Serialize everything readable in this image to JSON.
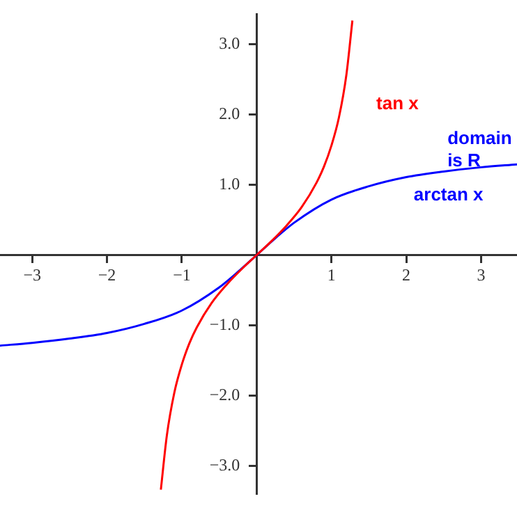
{
  "chart_data": {
    "type": "line",
    "xlim": [
      -3.43,
      3.48
    ],
    "ylim": [
      -3.4,
      3.43
    ],
    "xticks": [
      {
        "value": -3,
        "label": "−3"
      },
      {
        "value": -2,
        "label": "−2"
      },
      {
        "value": -1,
        "label": "−1"
      },
      {
        "value": 1,
        "label": "1"
      },
      {
        "value": 2,
        "label": "2"
      },
      {
        "value": 3,
        "label": "3"
      }
    ],
    "yticks": [
      {
        "value": -3,
        "label": "−3.0"
      },
      {
        "value": -2,
        "label": "−2.0"
      },
      {
        "value": -1,
        "label": "−1.0"
      },
      {
        "value": 1,
        "label": "1.0"
      },
      {
        "value": 2,
        "label": "2.0"
      },
      {
        "value": 3,
        "label": "3.0"
      }
    ],
    "grid": false,
    "legend": false,
    "marker": "none",
    "line_style": "solid",
    "series": [
      {
        "name": "tan x",
        "color": "#ff0000",
        "x": [
          -1.28,
          -1.2,
          -1.1,
          -1.0,
          -0.9,
          -0.8,
          -0.6,
          -0.4,
          -0.2,
          0,
          0.2,
          0.4,
          0.6,
          0.8,
          0.9,
          1.0,
          1.1,
          1.2,
          1.28
        ],
        "values": [
          -3.34,
          -2.57,
          -1.96,
          -1.56,
          -1.26,
          -1.03,
          -0.68,
          -0.42,
          -0.2,
          0,
          0.2,
          0.42,
          0.68,
          1.03,
          1.26,
          1.56,
          1.96,
          2.57,
          3.34
        ]
      },
      {
        "name": "arctan x",
        "color": "#0000ff",
        "x": [
          -3.43,
          -3,
          -2.5,
          -2,
          -1.5,
          -1,
          -0.5,
          -0.25,
          0,
          0.25,
          0.5,
          1,
          1.5,
          2,
          2.5,
          3,
          3.48
        ],
        "values": [
          -1.29,
          -1.25,
          -1.19,
          -1.11,
          -0.98,
          -0.79,
          -0.46,
          -0.24,
          0,
          0.24,
          0.46,
          0.79,
          0.98,
          1.11,
          1.19,
          1.25,
          1.29
        ]
      }
    ],
    "annotations": [
      "domain is R"
    ]
  }
}
